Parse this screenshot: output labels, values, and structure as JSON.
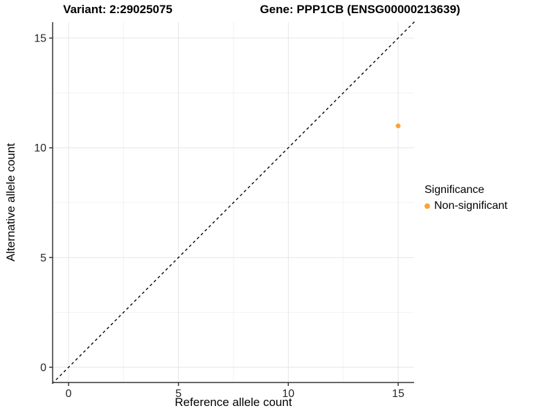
{
  "header": {
    "variant_title": "Variant: 2:29025075",
    "gene_title": "Gene: PPP1CB (ENSG00000213639)"
  },
  "colors": {
    "point_orange": "#FAA43A",
    "grid_major": "#e5e5e5",
    "grid_minor": "#f2f2f2",
    "axis_line": "#333333",
    "tick_text": "#262626",
    "identity_line": "#000000",
    "background": "#ffffff"
  },
  "chart_data": {
    "type": "scatter",
    "title": "",
    "xlabel": "Reference allele count",
    "ylabel": "Alternative allele count",
    "xlim": [
      -0.75,
      15.75
    ],
    "ylim": [
      -0.75,
      15.75
    ],
    "x_ticks": [
      0,
      5,
      10,
      15
    ],
    "y_ticks": [
      0,
      5,
      10,
      15
    ],
    "x_minor_gridlines": [
      2.5,
      7.5,
      12.5
    ],
    "y_minor_gridlines": [
      2.5,
      7.5,
      12.5
    ],
    "grid": true,
    "identity_line": {
      "style": "dashed",
      "from": [
        -0.75,
        -0.75
      ],
      "to": [
        15.75,
        15.75
      ],
      "color": "#000000"
    },
    "series": [
      {
        "name": "Non-significant",
        "color": "#FAA43A",
        "points": [
          [
            15,
            11
          ]
        ]
      }
    ],
    "legend": {
      "title": "Significance",
      "position": "right",
      "entries": [
        {
          "label": "Non-significant",
          "color": "#FAA43A"
        }
      ]
    }
  }
}
